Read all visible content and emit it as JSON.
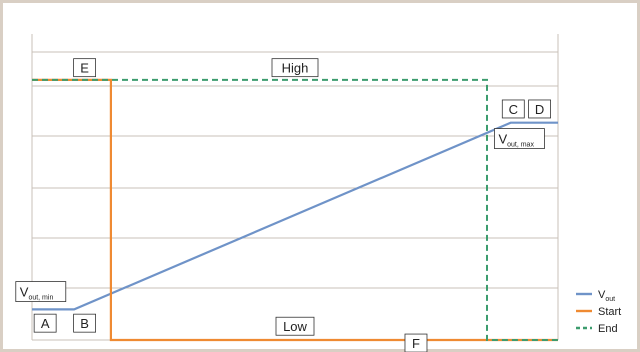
{
  "chart_data": {
    "type": "line",
    "xlim": [
      0,
      10
    ],
    "ylim": [
      0,
      10
    ],
    "grid": true,
    "legend_position": "bottom-right",
    "series": [
      {
        "name": "V",
        "name_subscript": "out",
        "color": "#6f93c8",
        "style": "solid",
        "points": [
          [
            0,
            1.0
          ],
          [
            0.8,
            1.0
          ],
          [
            9.1,
            7.1
          ],
          [
            10,
            7.1
          ]
        ]
      },
      {
        "name": "Start",
        "color": "#ef8a32",
        "style": "solid",
        "points": [
          [
            0,
            8.5
          ],
          [
            1.5,
            8.5
          ],
          [
            1.5,
            0.0
          ],
          [
            10,
            0.0
          ]
        ]
      },
      {
        "name": "End",
        "color": "#3c9c6e",
        "style": "dashed",
        "points": [
          [
            0,
            8.5
          ],
          [
            8.65,
            8.5
          ],
          [
            8.65,
            0.0
          ],
          [
            10,
            0.0
          ]
        ]
      }
    ],
    "annotations": [
      {
        "id": "label-a",
        "text": "A",
        "x": 0.25,
        "y": 0.55
      },
      {
        "id": "label-b",
        "text": "B",
        "x": 1.0,
        "y": 0.55
      },
      {
        "id": "label-c",
        "text": "C",
        "x": 9.15,
        "y": 7.55
      },
      {
        "id": "label-d",
        "text": "D",
        "x": 9.65,
        "y": 7.55
      },
      {
        "id": "label-e",
        "text": "E",
        "x": 1.0,
        "y": 8.9
      },
      {
        "id": "label-f",
        "text": "F",
        "x": 7.3,
        "y": -0.1
      },
      {
        "id": "label-high",
        "text": "High",
        "x": 5.0,
        "y": 8.9
      },
      {
        "id": "label-low",
        "text": "Low",
        "x": 5.0,
        "y": 0.45
      }
    ],
    "value_labels": [
      {
        "id": "vout-min",
        "main": "V",
        "sub": "out, min",
        "x": 0.3,
        "y": 1.55
      },
      {
        "id": "vout-max",
        "main": "V",
        "sub": "out, max",
        "x": 9.4,
        "y": 6.55
      }
    ]
  }
}
